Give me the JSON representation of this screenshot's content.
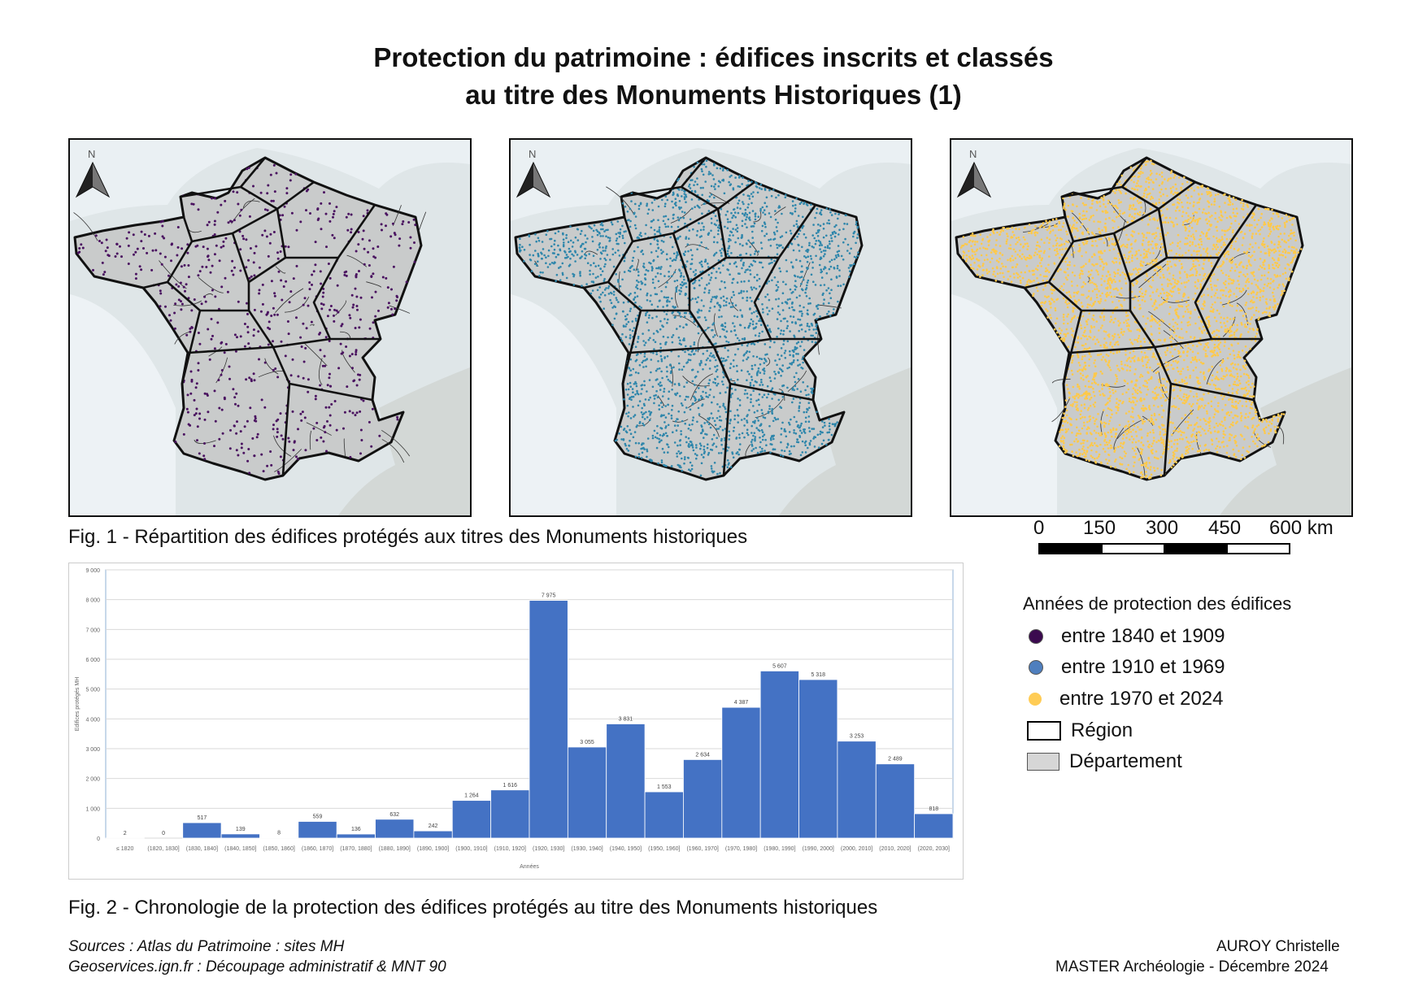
{
  "title": {
    "line1": "Protection du patrimoine : édifices inscrits et classés",
    "line2": "au titre des Monuments Historiques (1)"
  },
  "maps": [
    {
      "north_label": "N",
      "dot_color": "#4a1260"
    },
    {
      "north_label": "N",
      "dot_color": "#2e86ab"
    },
    {
      "north_label": "N",
      "dot_color": "#ffc94a"
    }
  ],
  "fig1_caption": "Fig. 1 - Répartition des édifices protégés aux titres des Monuments historiques",
  "scale_bar": {
    "labels": [
      "0",
      "150",
      "300",
      "450",
      "600 km"
    ]
  },
  "legend": {
    "title": "Années de protection des édifices",
    "items": [
      {
        "label": "entre 1840 et 1909",
        "color": "#3b0a4f",
        "symbol": "circle"
      },
      {
        "label": "entre 1910 et 1969",
        "color": "#4f7fbe",
        "symbol": "circle"
      },
      {
        "label": "entre 1970 et 2024",
        "color": "#ffcc55",
        "symbol": "circle"
      },
      {
        "label": "Région",
        "color": "#000000",
        "symbol": "box-outline"
      },
      {
        "label": "Département",
        "color": "#d6d6d6",
        "symbol": "box-fill"
      }
    ]
  },
  "chart_data": {
    "type": "bar",
    "bar_color": "#4472c4",
    "ylabel": "Edifices protégés MH",
    "xlabel": "Années",
    "ylim": [
      0,
      9000
    ],
    "yticks": [
      "0",
      "1 000",
      "2 000",
      "3 000",
      "4 000",
      "5 000",
      "6 000",
      "7 000",
      "8 000",
      "9 000"
    ],
    "categories": [
      "≤ 1820",
      "(1820, 1830]",
      "(1830, 1840]",
      "(1840, 1850]",
      "(1850, 1860]",
      "(1860, 1870]",
      "(1870, 1880]",
      "(1880, 1890]",
      "(1890, 1900]",
      "(1900, 1910]",
      "(1910, 1920]",
      "(1920, 1930]",
      "(1930, 1940]",
      "(1940, 1950]",
      "(1950, 1960]",
      "(1960, 1970]",
      "(1970, 1980]",
      "(1980, 1990]",
      "(1990, 2000]",
      "(2000, 2010]",
      "(2010, 2020]",
      "(2020, 2030]"
    ],
    "values": [
      2,
      0,
      517,
      139,
      8,
      559,
      136,
      632,
      242,
      1264,
      1616,
      7975,
      3055,
      3831,
      1553,
      2634,
      4387,
      5607,
      5318,
      3253,
      2489,
      818
    ],
    "value_labels": [
      "2",
      "0",
      "517",
      "139",
      "8",
      "559",
      "136",
      "632",
      "242",
      "1 264",
      "1 616",
      "7 975",
      "3 055",
      "3 831",
      "1 553",
      "2 634",
      "4 387",
      "5 607",
      "5 318",
      "3 253",
      "2 489",
      "818"
    ]
  },
  "fig2_caption": "Fig. 2 - Chronologie de la protection des édifices protégés au titre des Monuments historiques",
  "sources": {
    "line1": "Sources : Atlas du Patrimoine : sites MH",
    "line2": "Geoservices.ign.fr : Découpage administratif & MNT 90"
  },
  "author": {
    "line1": "AUROY Christelle",
    "line2": "MASTER Archéologie - Décembre 2024"
  }
}
